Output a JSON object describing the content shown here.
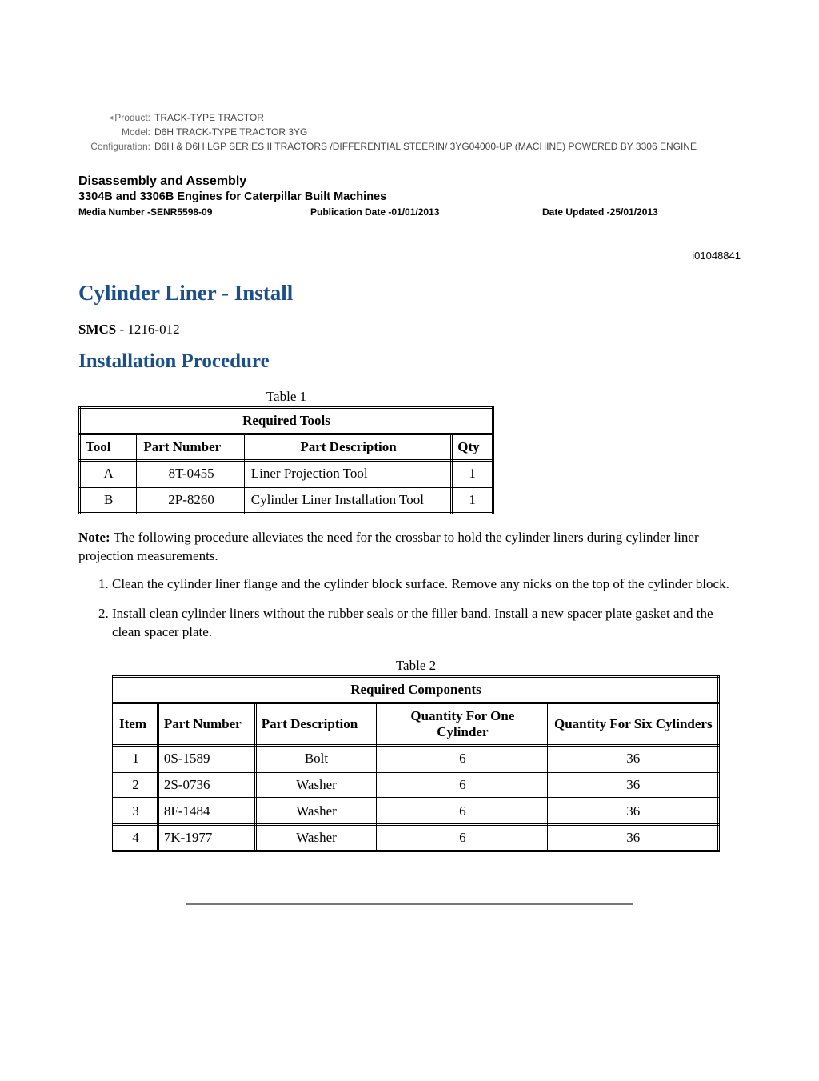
{
  "meta": {
    "product_label": "Product:",
    "product_value": "TRACK-TYPE TRACTOR",
    "model_label": "Model:",
    "model_value": "D6H TRACK-TYPE TRACTOR 3YG",
    "config_label": "Configuration:",
    "config_value": "D6H & D6H LGP SERIES II TRACTORS /DIFFERENTIAL STEERIN/ 3YG04000-UP (MACHINE) POWERED BY 3306 ENGINE"
  },
  "doc_header": {
    "title": "Disassembly and Assembly",
    "subtitle": "3304B and 3306B Engines for Caterpillar Built Machines",
    "media_number": "Media Number -SENR5598-09",
    "pub_date": "Publication Date -01/01/2013",
    "date_updated": "Date Updated -25/01/2013"
  },
  "doc_id": "i01048841",
  "main_title": "Cylinder Liner - Install",
  "smcs": {
    "label": "SMCS - ",
    "code": "1216-012"
  },
  "section_title": "Installation Procedure",
  "table1": {
    "caption": "Table 1",
    "title": "Required Tools",
    "columns": [
      "Tool",
      "Part Number",
      "Part Description",
      "Qty"
    ],
    "col_widths": [
      "70px",
      "130px",
      "250px",
      "50px"
    ],
    "col_align_header": [
      "left",
      "left",
      "center",
      "left"
    ],
    "col_align_body": [
      "center",
      "center",
      "left",
      "center"
    ],
    "rows": [
      [
        "A",
        "8T-0455",
        "Liner Projection Tool",
        "1"
      ],
      [
        "B",
        "2P-8260",
        "Cylinder Liner Installation Tool",
        "1"
      ]
    ]
  },
  "note": {
    "label": "Note: ",
    "text": "The following procedure alleviates the need for the crossbar to hold the cylinder liners during cylinder liner projection measurements."
  },
  "steps": [
    "Clean the cylinder liner flange and the cylinder block surface. Remove any nicks on the top of the cylinder block.",
    "Install clean cylinder liners without the rubber seals or the filler band. Install a new spacer plate gasket and the clean spacer plate."
  ],
  "table2": {
    "caption": "Table 2",
    "title": "Required Components",
    "columns": [
      "Item",
      "Part Number",
      "Part Description",
      "Quantity For One Cylinder",
      "Quantity For Six Cylinders"
    ],
    "col_widths": [
      "55px",
      "120px",
      "150px",
      "210px",
      "210px"
    ],
    "col_align_header": [
      "left",
      "left",
      "left",
      "center",
      "center"
    ],
    "col_align_body": [
      "center",
      "left",
      "center",
      "center",
      "center"
    ],
    "rows": [
      [
        "1",
        "0S-1589",
        "Bolt",
        "6",
        "36"
      ],
      [
        "2",
        "2S-0736",
        "Washer",
        "6",
        "36"
      ],
      [
        "3",
        "8F-1484",
        "Washer",
        "6",
        "36"
      ],
      [
        "4",
        "7K-1977",
        "Washer",
        "6",
        "36"
      ]
    ]
  },
  "colors": {
    "heading": "#1a4f8a",
    "text": "#000000",
    "meta_label": "#666666",
    "meta_value": "#444444",
    "rule": "#777777",
    "background": "#ffffff"
  }
}
